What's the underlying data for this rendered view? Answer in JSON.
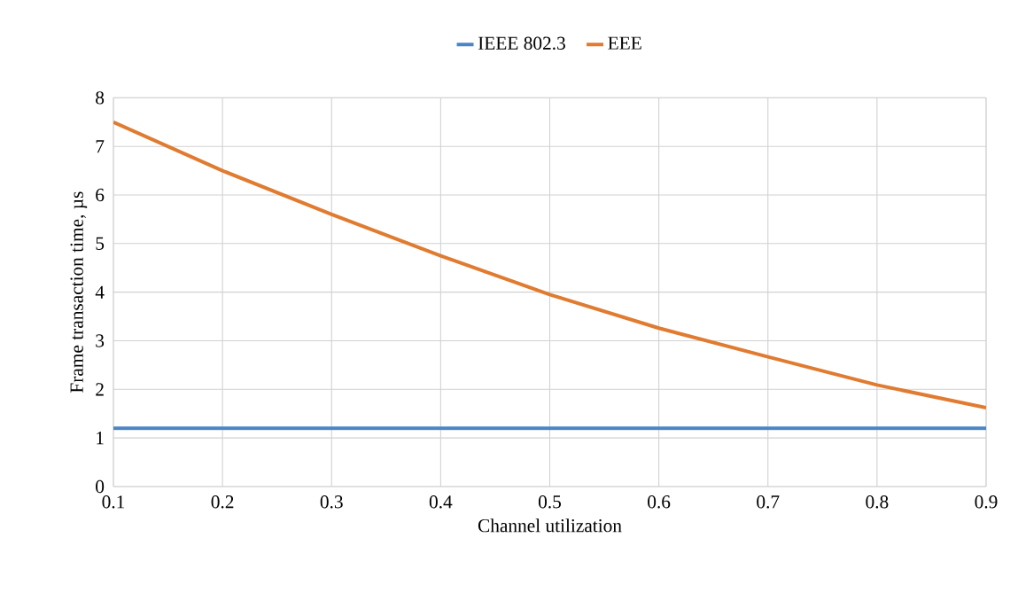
{
  "chart_data": {
    "type": "line",
    "xlabel": "Channel utilization",
    "ylabel": "Frame transaction time, µs",
    "x": [
      0.1,
      0.2,
      0.3,
      0.4,
      0.5,
      0.6,
      0.7,
      0.8,
      0.9
    ],
    "series": [
      {
        "name": "IEEE 802.3",
        "color": "#4a86c5",
        "values": [
          1.2,
          1.2,
          1.2,
          1.2,
          1.2,
          1.2,
          1.2,
          1.2,
          1.2
        ]
      },
      {
        "name": "EEE",
        "color": "#e07b30",
        "values": [
          7.5,
          6.5,
          5.6,
          4.75,
          3.95,
          3.26,
          2.67,
          2.09,
          1.62
        ]
      }
    ],
    "xlim": [
      0.1,
      0.9
    ],
    "xticks": [
      0.1,
      0.2,
      0.3,
      0.4,
      0.5,
      0.6,
      0.7,
      0.8,
      0.9
    ],
    "ylim": [
      0,
      8
    ],
    "yticks": [
      0,
      1,
      2,
      3,
      4,
      5,
      6,
      7,
      8
    ],
    "grid": true,
    "legend": "top",
    "marker": "none",
    "line_style": "solid"
  }
}
